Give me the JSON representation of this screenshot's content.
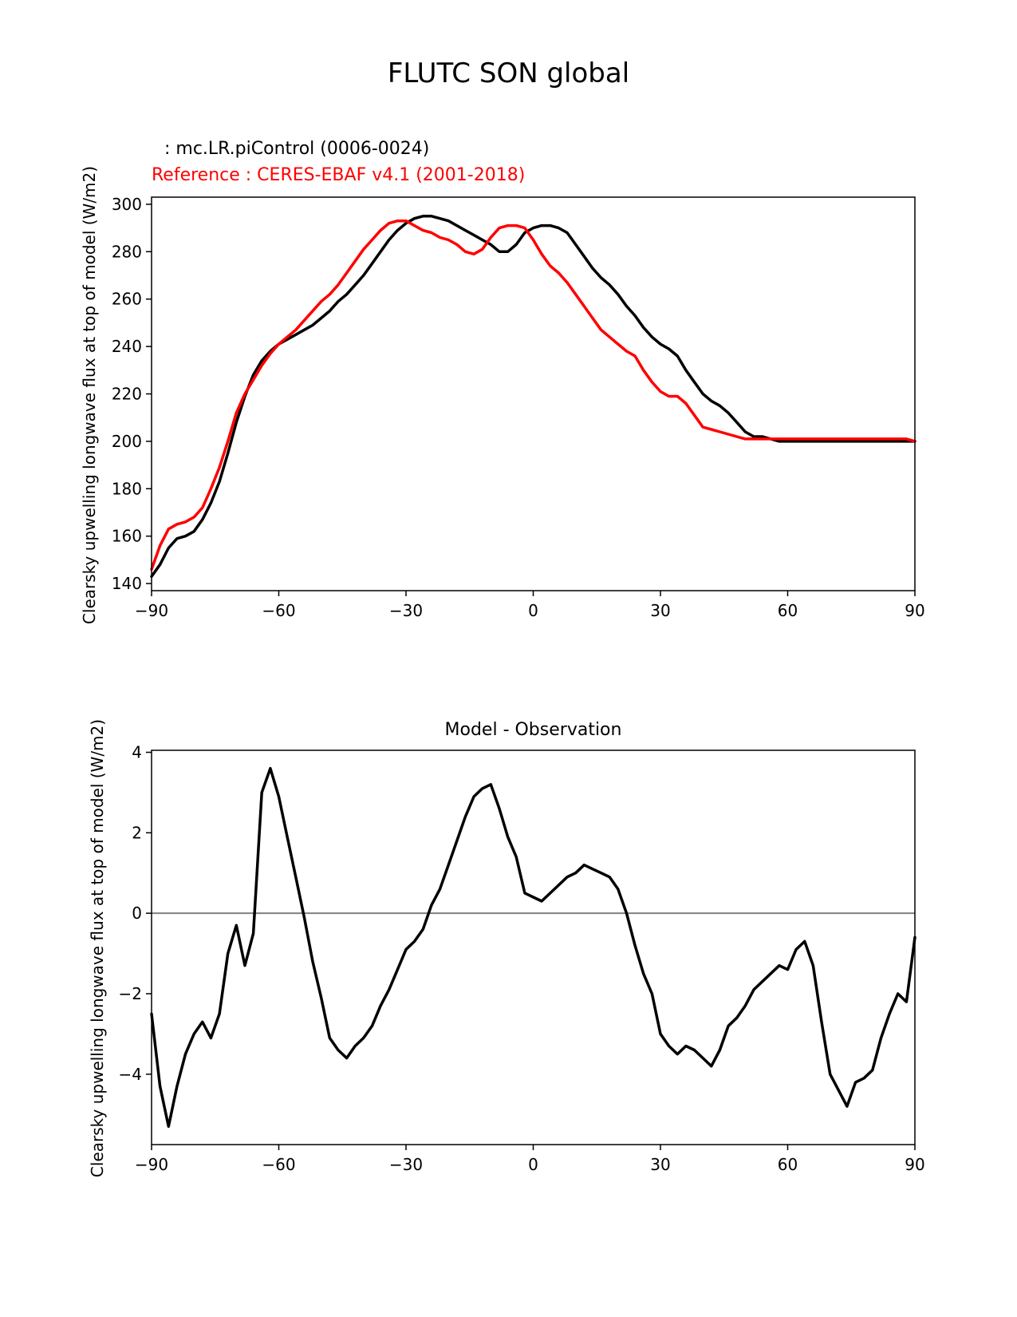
{
  "title": "FLUTC SON global",
  "legend": {
    "test_label": ": mc.LR.piControl (0006-0024)",
    "reference_label": "Reference : CERES-EBAF v4.1 (2001-2018)"
  },
  "colors": {
    "test": "#000000",
    "reference": "#ff0000",
    "zero_line": "#808080"
  },
  "chart_data": [
    {
      "type": "line",
      "title": "",
      "xlabel": "",
      "ylabel": "Clearsky upwelling longwave flux at top of model (W/m2)",
      "xlim": [
        -90,
        90
      ],
      "ylim": [
        137,
        303
      ],
      "xticks": [
        -90,
        -60,
        -30,
        0,
        30,
        60,
        90
      ],
      "yticks": [
        140,
        160,
        180,
        200,
        220,
        240,
        260,
        280,
        300
      ],
      "grid": false,
      "series": [
        {
          "name": ": mc.LR.piControl (0006-0024)",
          "color": "#000000",
          "x": [
            -90,
            -88,
            -86,
            -84,
            -82,
            -80,
            -78,
            -76,
            -74,
            -72,
            -70,
            -68,
            -66,
            -64,
            -62,
            -60,
            -58,
            -56,
            -54,
            -52,
            -50,
            -48,
            -46,
            -44,
            -42,
            -40,
            -38,
            -36,
            -34,
            -32,
            -30,
            -28,
            -26,
            -24,
            -22,
            -20,
            -18,
            -16,
            -14,
            -12,
            -10,
            -8,
            -6,
            -4,
            -2,
            0,
            2,
            4,
            6,
            8,
            10,
            12,
            14,
            16,
            18,
            20,
            22,
            24,
            26,
            28,
            30,
            32,
            34,
            36,
            38,
            40,
            42,
            44,
            46,
            48,
            50,
            52,
            54,
            56,
            58,
            60,
            62,
            64,
            66,
            68,
            70,
            72,
            74,
            76,
            78,
            80,
            82,
            84,
            86,
            88,
            90
          ],
          "y": [
            143,
            148,
            155,
            159,
            160,
            162,
            167,
            174,
            183,
            195,
            208,
            219,
            228,
            234,
            238,
            241,
            243,
            245,
            247,
            249,
            252,
            255,
            259,
            262,
            266,
            270,
            275,
            280,
            285,
            289,
            292,
            294,
            295,
            295,
            294,
            293,
            291,
            289,
            287,
            285,
            283,
            280,
            280,
            283,
            288,
            290,
            291,
            291,
            290,
            288,
            283,
            278,
            273,
            269,
            266,
            262,
            257,
            253,
            248,
            244,
            241,
            239,
            236,
            230,
            225,
            220,
            217,
            215,
            212,
            208,
            204,
            202,
            202,
            201,
            200,
            200,
            200,
            200,
            200,
            200,
            200,
            200,
            200,
            200,
            200,
            200,
            200,
            200,
            200,
            200,
            200
          ]
        },
        {
          "name": "Reference : CERES-EBAF v4.1 (2001-2018)",
          "color": "#ff0000",
          "x": [
            -90,
            -88,
            -86,
            -84,
            -82,
            -80,
            -78,
            -76,
            -74,
            -72,
            -70,
            -68,
            -66,
            -64,
            -62,
            -60,
            -58,
            -56,
            -54,
            -52,
            -50,
            -48,
            -46,
            -44,
            -42,
            -40,
            -38,
            -36,
            -34,
            -32,
            -30,
            -28,
            -26,
            -24,
            -22,
            -20,
            -18,
            -16,
            -14,
            -12,
            -10,
            -8,
            -6,
            -4,
            -2,
            0,
            2,
            4,
            6,
            8,
            10,
            12,
            14,
            16,
            18,
            20,
            22,
            24,
            26,
            28,
            30,
            32,
            34,
            36,
            38,
            40,
            42,
            44,
            46,
            48,
            50,
            52,
            54,
            56,
            58,
            60,
            62,
            64,
            66,
            68,
            70,
            72,
            74,
            76,
            78,
            80,
            82,
            84,
            86,
            88,
            90
          ],
          "y": [
            146,
            156,
            163,
            165,
            166,
            168,
            172,
            180,
            189,
            200,
            212,
            220,
            226,
            232,
            237,
            241,
            244,
            247,
            251,
            255,
            259,
            262,
            266,
            271,
            276,
            281,
            285,
            289,
            292,
            293,
            293,
            291,
            289,
            288,
            286,
            285,
            283,
            280,
            279,
            281,
            286,
            290,
            291,
            291,
            290,
            285,
            279,
            274,
            271,
            267,
            262,
            257,
            252,
            247,
            244,
            241,
            238,
            236,
            230,
            225,
            221,
            219,
            219,
            216,
            211,
            206,
            205,
            204,
            203,
            202,
            201,
            201,
            201,
            201,
            201,
            201,
            201,
            201,
            201,
            201,
            201,
            201,
            201,
            201,
            201,
            201,
            201,
            201,
            201,
            201,
            200
          ]
        }
      ]
    },
    {
      "type": "line",
      "title": "Model - Observation",
      "xlabel": "",
      "ylabel": "Clearsky upwelling longwave flux at top of model (W/m2)",
      "xlim": [
        -90,
        90
      ],
      "ylim": [
        -5.75,
        4.05
      ],
      "xticks": [
        -90,
        -60,
        -30,
        0,
        30,
        60,
        90
      ],
      "yticks": [
        -4,
        -2,
        0,
        2,
        4
      ],
      "grid": false,
      "zero_line": 0,
      "series": [
        {
          "color": "#000000",
          "x": [
            -90,
            -88,
            -86,
            -84,
            -82,
            -80,
            -78,
            -76,
            -74,
            -72,
            -70,
            -68,
            -66,
            -64,
            -62,
            -60,
            -58,
            -56,
            -54,
            -52,
            -50,
            -48,
            -46,
            -44,
            -42,
            -40,
            -38,
            -36,
            -34,
            -32,
            -30,
            -28,
            -26,
            -24,
            -22,
            -20,
            -18,
            -16,
            -14,
            -12,
            -10,
            -8,
            -6,
            -4,
            -2,
            0,
            2,
            4,
            6,
            8,
            10,
            12,
            14,
            16,
            18,
            20,
            22,
            24,
            26,
            28,
            30,
            32,
            34,
            36,
            38,
            40,
            42,
            44,
            46,
            48,
            50,
            52,
            54,
            56,
            58,
            60,
            62,
            64,
            66,
            68,
            70,
            72,
            74,
            76,
            78,
            80,
            82,
            84,
            86,
            88,
            90
          ],
          "y": [
            -2.5,
            -4.3,
            -5.3,
            -4.3,
            -3.5,
            -3.0,
            -2.7,
            -3.1,
            -2.5,
            -1.0,
            -0.3,
            -1.3,
            -0.5,
            3.0,
            3.6,
            2.9,
            1.9,
            0.9,
            -0.1,
            -1.2,
            -2.1,
            -3.1,
            -3.4,
            -3.6,
            -3.3,
            -3.1,
            -2.8,
            -2.3,
            -1.9,
            -1.4,
            -0.9,
            -0.7,
            -0.4,
            0.2,
            0.6,
            1.2,
            1.8,
            2.4,
            2.9,
            3.1,
            3.2,
            2.6,
            1.9,
            1.4,
            0.5,
            0.4,
            0.3,
            0.5,
            0.7,
            0.9,
            1.0,
            1.2,
            1.1,
            1.0,
            0.9,
            0.6,
            0.0,
            -0.8,
            -1.5,
            -2.0,
            -3.0,
            -3.3,
            -3.5,
            -3.3,
            -3.4,
            -3.6,
            -3.8,
            -3.4,
            -2.8,
            -2.6,
            -2.3,
            -1.9,
            -1.7,
            -1.5,
            -1.3,
            -1.4,
            -0.9,
            -0.7,
            -1.3,
            -2.7,
            -4.0,
            -4.4,
            -4.8,
            -4.2,
            -4.1,
            -3.9,
            -3.1,
            -2.5,
            -2.0,
            -2.2,
            -0.6
          ]
        }
      ]
    }
  ]
}
